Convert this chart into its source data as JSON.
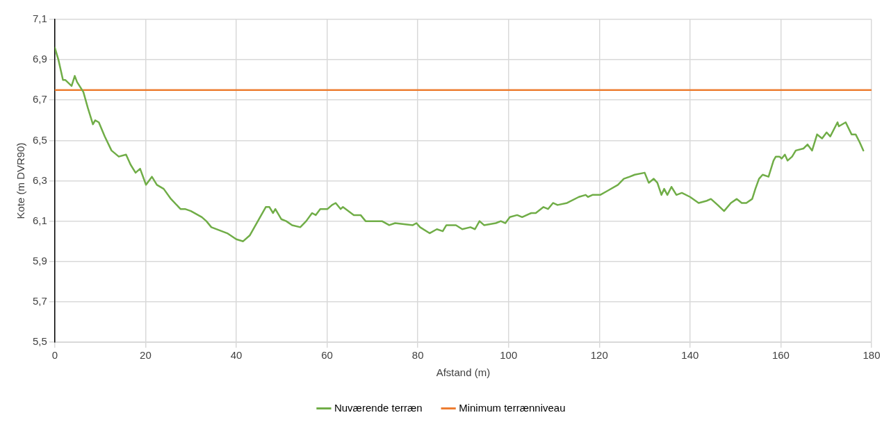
{
  "chart_data": {
    "type": "line",
    "xlabel": "Afstand (m)",
    "ylabel": "Kote (m DVR90)",
    "xlim": [
      0,
      180
    ],
    "xticks": [
      0,
      20,
      40,
      60,
      80,
      100,
      120,
      140,
      160,
      180
    ],
    "ylim": [
      5.5,
      7.1
    ],
    "yticks": [
      {
        "value": 5.5,
        "label": "5,5"
      },
      {
        "value": 5.7,
        "label": "5,7"
      },
      {
        "value": 5.9,
        "label": "5,9"
      },
      {
        "value": 6.1,
        "label": "6,1"
      },
      {
        "value": 6.3,
        "label": "6,3"
      },
      {
        "value": 6.5,
        "label": "6,5"
      },
      {
        "value": 6.7,
        "label": "6,7"
      },
      {
        "value": 6.9,
        "label": "6,9"
      },
      {
        "value": 7.1,
        "label": "7,1"
      }
    ],
    "grid": true,
    "legend": "bottom",
    "marker": "none",
    "line_style": "solid",
    "series": [
      {
        "name": "Nuværende terræn",
        "color": "#70ad47",
        "x": [
          0,
          0.8,
          1.8,
          2.3,
          3.7,
          4.4,
          4.9,
          6.3,
          7.3,
          8.4,
          8.9,
          9.7,
          11.0,
          12.5,
          14.1,
          15.7,
          16.7,
          17.8,
          18.8,
          20.1,
          21.4,
          22.5,
          24,
          25.6,
          27.7,
          28.7,
          30,
          32.4,
          33.4,
          34.5,
          38,
          40,
          41.5,
          43,
          46.5,
          47.3,
          48.1,
          48.6,
          49.9,
          51,
          52.3,
          54.1,
          55.4,
          56.7,
          57.5,
          58.5,
          60.1,
          61.1,
          61.9,
          63,
          63.5,
          65.9,
          67.4,
          68.5,
          72.1,
          73.7,
          75,
          78.9,
          79.7,
          80.5,
          82.6,
          84.2,
          85.5,
          86.3,
          88.4,
          89.8,
          91.6,
          92.6,
          93.6,
          94.6,
          97.2,
          98.3,
          99.3,
          100.3,
          101.9,
          103,
          105,
          106,
          107.7,
          108.7,
          109.8,
          110.8,
          112.9,
          115.5,
          117,
          117.5,
          118.5,
          120.2,
          121.8,
          124.1,
          125.4,
          126.7,
          127.8,
          130,
          130.9,
          132,
          132.8,
          133.7,
          134.3,
          135,
          135.9,
          137,
          138.2,
          140,
          141.9,
          143.6,
          144.6,
          146.1,
          147.5,
          149,
          150.3,
          151.4,
          152.4,
          153.7,
          154.4,
          155.2,
          156,
          157.3,
          158.4,
          158.9,
          159.7,
          160.2,
          160.9,
          161.5,
          162.5,
          163.3,
          165,
          165.9,
          166.9,
          168,
          169.1,
          170.1,
          170.9,
          172.5,
          172.8,
          174.3,
          175.6,
          176.5,
          177.4,
          178.2
        ],
        "values": [
          6.96,
          6.9,
          6.8,
          6.8,
          6.77,
          6.82,
          6.79,
          6.74,
          6.66,
          6.58,
          6.6,
          6.59,
          6.52,
          6.45,
          6.42,
          6.43,
          6.38,
          6.34,
          6.36,
          6.28,
          6.32,
          6.28,
          6.26,
          6.21,
          6.16,
          6.16,
          6.15,
          6.12,
          6.1,
          6.07,
          6.04,
          6.01,
          6.0,
          6.03,
          6.17,
          6.17,
          6.14,
          6.16,
          6.11,
          6.1,
          6.08,
          6.07,
          6.1,
          6.14,
          6.13,
          6.16,
          6.16,
          6.18,
          6.19,
          6.16,
          6.17,
          6.13,
          6.13,
          6.1,
          6.1,
          6.08,
          6.09,
          6.08,
          6.09,
          6.07,
          6.04,
          6.06,
          6.05,
          6.08,
          6.08,
          6.06,
          6.07,
          6.06,
          6.1,
          6.08,
          6.09,
          6.1,
          6.09,
          6.12,
          6.13,
          6.12,
          6.14,
          6.14,
          6.17,
          6.16,
          6.19,
          6.18,
          6.19,
          6.22,
          6.23,
          6.22,
          6.23,
          6.23,
          6.25,
          6.28,
          6.31,
          6.32,
          6.33,
          6.34,
          6.29,
          6.31,
          6.29,
          6.23,
          6.26,
          6.23,
          6.27,
          6.23,
          6.24,
          6.22,
          6.19,
          6.2,
          6.21,
          6.18,
          6.15,
          6.19,
          6.21,
          6.19,
          6.19,
          6.21,
          6.26,
          6.31,
          6.33,
          6.32,
          6.4,
          6.42,
          6.42,
          6.41,
          6.43,
          6.4,
          6.42,
          6.45,
          6.46,
          6.48,
          6.45,
          6.53,
          6.51,
          6.54,
          6.52,
          6.59,
          6.57,
          6.59,
          6.53,
          6.53,
          6.49,
          6.45
        ]
      },
      {
        "name": "Minimum terrænniveau",
        "color": "#ed7d31",
        "x": [
          0,
          180
        ],
        "values": [
          6.75,
          6.75
        ]
      }
    ]
  }
}
